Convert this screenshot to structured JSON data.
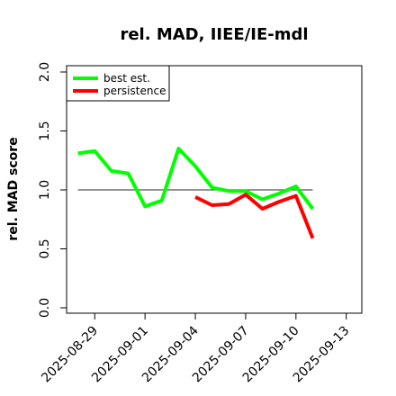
{
  "chart_data": {
    "type": "line",
    "title": "rel. MAD, IIEE/IE-mdl",
    "ylabel": "rel. MAD score",
    "xlabel": "",
    "ylim": [
      0.0,
      2.0
    ],
    "yticks": [
      "0.0",
      "0.5",
      "1.0",
      "1.5",
      "2.0"
    ],
    "xticks": [
      "2025-08-29",
      "2025-09-01",
      "2025-09-04",
      "2025-09-07",
      "2025-09-10",
      "2025-09-13"
    ],
    "legend_position": "top-left",
    "reference_line": 1.0,
    "series": [
      {
        "name": "best est.",
        "color": "#00ff00",
        "x": [
          "2025-08-28",
          "2025-08-29",
          "2025-08-30",
          "2025-08-31",
          "2025-09-01",
          "2025-09-02",
          "2025-09-03",
          "2025-09-04",
          "2025-09-05",
          "2025-09-06",
          "2025-09-07",
          "2025-09-08",
          "2025-09-09",
          "2025-09-10",
          "2025-09-11"
        ],
        "values": [
          1.31,
          1.33,
          1.16,
          1.14,
          0.86,
          0.91,
          1.35,
          1.2,
          1.02,
          0.99,
          0.99,
          0.92,
          0.97,
          1.03,
          0.84
        ]
      },
      {
        "name": "persistence",
        "color": "#ff0000",
        "x": [
          "2025-09-04",
          "2025-09-05",
          "2025-09-06",
          "2025-09-07",
          "2025-09-08",
          "2025-09-09",
          "2025-09-10",
          "2025-09-11"
        ],
        "values": [
          0.94,
          0.87,
          0.88,
          0.96,
          0.84,
          0.9,
          0.95,
          0.59
        ]
      }
    ]
  }
}
